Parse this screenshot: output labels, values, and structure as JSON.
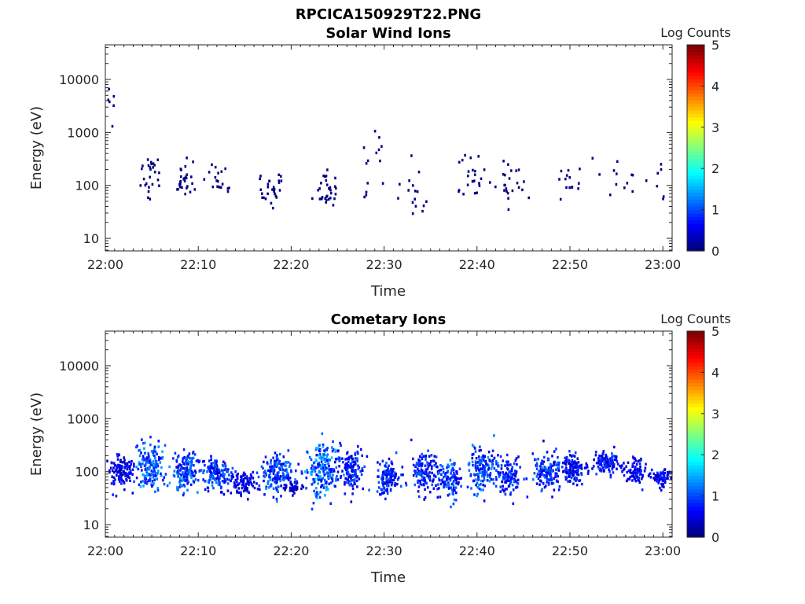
{
  "figure": {
    "title": "RPCICA150929T22.PNG"
  },
  "chart_data": [
    {
      "type": "heatmap",
      "title": "Solar Wind Ions",
      "xlabel": "Time",
      "ylabel": "Energy (eV)",
      "x_ticks": [
        "22:00",
        "22:10",
        "22:20",
        "22:30",
        "22:40",
        "22:50",
        "23:00"
      ],
      "x_range_minutes": [
        0,
        61
      ],
      "y_ticks": [
        "10",
        "100",
        "1000",
        "10000"
      ],
      "y_scale": "log",
      "ylim": [
        5.8,
        45000
      ],
      "colorbar": {
        "label": "Log Counts",
        "ticks": [
          "0",
          "1",
          "2",
          "3",
          "4",
          "5"
        ],
        "range": [
          0,
          5
        ],
        "colormap": "jet"
      },
      "pattern": "sparse",
      "events": [
        {
          "t": 0.5,
          "e": 3500,
          "w": 1.4,
          "h": 3.0,
          "n": 10,
          "v": 0.15
        },
        {
          "t": 4.8,
          "e": 150,
          "w": 1.2,
          "h": 2.5,
          "n": 26,
          "v": 0.2
        },
        {
          "t": 8.5,
          "e": 140,
          "w": 1.3,
          "h": 2.2,
          "n": 28,
          "v": 0.25
        },
        {
          "t": 11.8,
          "e": 110,
          "w": 1.2,
          "h": 2.0,
          "n": 18,
          "v": 0.2
        },
        {
          "t": 17.8,
          "e": 90,
          "w": 1.4,
          "h": 1.9,
          "n": 28,
          "v": 0.25
        },
        {
          "t": 23.8,
          "e": 80,
          "w": 1.5,
          "h": 2.0,
          "n": 30,
          "v": 0.25
        },
        {
          "t": 29.0,
          "e": 300,
          "w": 2.0,
          "h": 3.0,
          "n": 14,
          "v": 0.15
        },
        {
          "t": 33.0,
          "e": 60,
          "w": 1.6,
          "h": 2.2,
          "n": 16,
          "v": 0.15
        },
        {
          "t": 39.6,
          "e": 120,
          "w": 1.6,
          "h": 2.5,
          "n": 22,
          "v": 0.2
        },
        {
          "t": 43.6,
          "e": 100,
          "w": 1.6,
          "h": 2.4,
          "n": 24,
          "v": 0.2
        },
        {
          "t": 50.0,
          "e": 110,
          "w": 1.2,
          "h": 2.0,
          "n": 14,
          "v": 0.2
        },
        {
          "t": 55.0,
          "e": 180,
          "w": 1.6,
          "h": 2.2,
          "n": 12,
          "v": 0.15
        },
        {
          "t": 59.5,
          "e": 120,
          "w": 1.6,
          "h": 2.0,
          "n": 8,
          "v": 0.15
        }
      ]
    },
    {
      "type": "heatmap",
      "title": "Cometary Ions",
      "xlabel": "Time",
      "ylabel": "Energy (eV)",
      "x_ticks": [
        "22:00",
        "22:10",
        "22:20",
        "22:30",
        "22:40",
        "22:50",
        "23:00"
      ],
      "x_range_minutes": [
        0,
        61
      ],
      "y_ticks": [
        "10",
        "100",
        "1000",
        "10000"
      ],
      "y_scale": "log",
      "ylim": [
        5.8,
        45000
      ],
      "colorbar": {
        "label": "Log Counts",
        "ticks": [
          "0",
          "1",
          "2",
          "3",
          "4",
          "5"
        ],
        "range": [
          0,
          5
        ],
        "colormap": "jet"
      },
      "pattern": "dense",
      "events": [
        {
          "t": 1.5,
          "e": 100,
          "w": 1.5,
          "h": 1.8,
          "n": 120,
          "v": 0.6
        },
        {
          "t": 4.8,
          "e": 120,
          "w": 1.5,
          "h": 2.2,
          "n": 170,
          "v": 1.1
        },
        {
          "t": 8.5,
          "e": 100,
          "w": 1.3,
          "h": 2.0,
          "n": 150,
          "v": 1.0
        },
        {
          "t": 11.8,
          "e": 90,
          "w": 1.5,
          "h": 1.8,
          "n": 140,
          "v": 0.9
        },
        {
          "t": 14.8,
          "e": 60,
          "w": 1.3,
          "h": 1.5,
          "n": 90,
          "v": 0.6
        },
        {
          "t": 18.2,
          "e": 90,
          "w": 1.7,
          "h": 2.1,
          "n": 160,
          "v": 1.0
        },
        {
          "t": 20.2,
          "e": 50,
          "w": 0.8,
          "h": 1.2,
          "n": 40,
          "v": 0.4
        },
        {
          "t": 23.2,
          "e": 110,
          "w": 1.8,
          "h": 2.6,
          "n": 190,
          "v": 1.2
        },
        {
          "t": 26.3,
          "e": 110,
          "w": 1.4,
          "h": 2.0,
          "n": 140,
          "v": 0.8
        },
        {
          "t": 30.3,
          "e": 80,
          "w": 1.3,
          "h": 2.0,
          "n": 120,
          "v": 0.8
        },
        {
          "t": 34.3,
          "e": 90,
          "w": 1.5,
          "h": 2.0,
          "n": 130,
          "v": 0.8
        },
        {
          "t": 37.0,
          "e": 70,
          "w": 1.2,
          "h": 2.0,
          "n": 100,
          "v": 0.9
        },
        {
          "t": 40.6,
          "e": 110,
          "w": 1.6,
          "h": 2.1,
          "n": 160,
          "v": 1.0
        },
        {
          "t": 43.4,
          "e": 80,
          "w": 1.2,
          "h": 1.9,
          "n": 100,
          "v": 0.8
        },
        {
          "t": 47.5,
          "e": 100,
          "w": 1.6,
          "h": 1.8,
          "n": 140,
          "v": 0.9
        },
        {
          "t": 50.3,
          "e": 110,
          "w": 1.4,
          "h": 1.7,
          "n": 120,
          "v": 0.7
        },
        {
          "t": 53.8,
          "e": 150,
          "w": 1.3,
          "h": 1.5,
          "n": 110,
          "v": 0.8
        },
        {
          "t": 56.8,
          "e": 100,
          "w": 1.2,
          "h": 1.6,
          "n": 80,
          "v": 0.6
        },
        {
          "t": 59.8,
          "e": 80,
          "w": 1.2,
          "h": 1.4,
          "n": 70,
          "v": 0.6
        }
      ]
    }
  ]
}
